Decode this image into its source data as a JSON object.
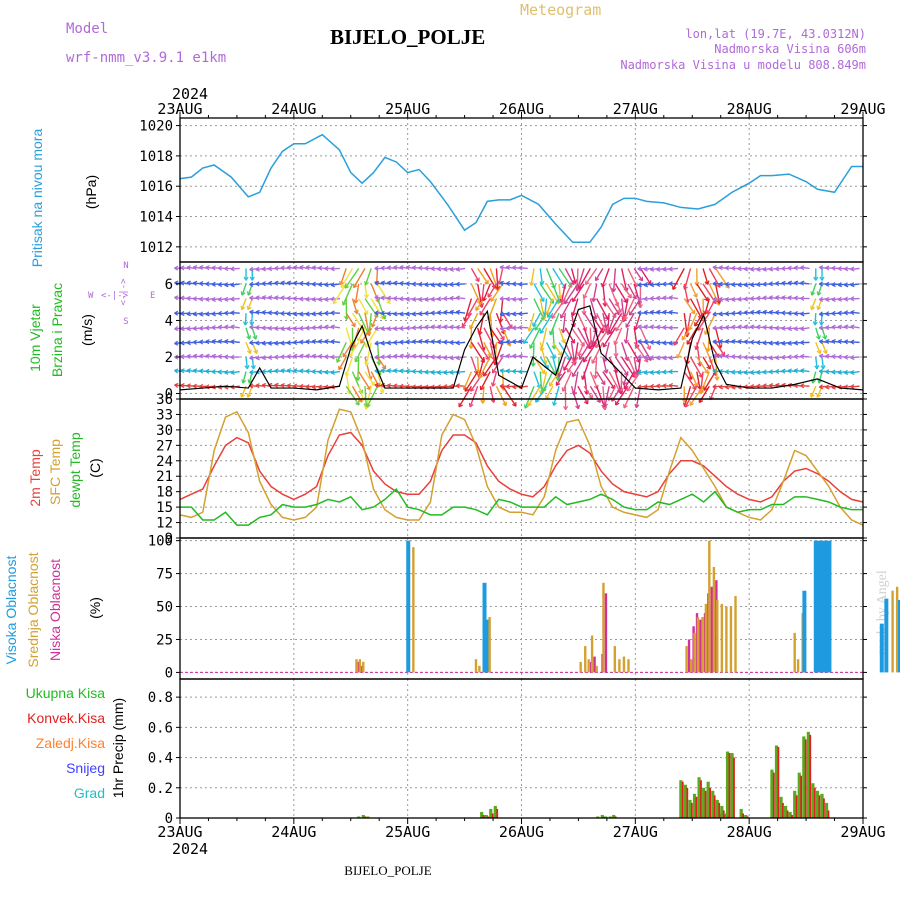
{
  "header": {
    "model_label": "Model",
    "model_name": "wrf-nmm_v3.9.1  e1km",
    "app_title": "Meteogram",
    "station": "BIJELO_POLJE",
    "lonlat": "lon,lat (19.7E, 43.0312N)",
    "altitude": "Nadmorska Visina 606m",
    "model_altitude": "Nadmorska Visina u modelu 808.849m",
    "year_top": "2024",
    "year_bottom": "2024",
    "footer_station": "BIJELO_POLJE",
    "watermark": "made by Angel"
  },
  "x_axis": {
    "ticks": [
      "23AUG",
      "24AUG",
      "25AUG",
      "26AUG",
      "27AUG",
      "28AUG",
      "29AUG"
    ]
  },
  "panels": {
    "pressure": {
      "label": "Pritisak na nivou mora",
      "unit": "(hPa)",
      "ticks": [
        "1012",
        "1014",
        "1016",
        "1018",
        "1020"
      ]
    },
    "wind": {
      "label1": "10m Vjetar",
      "label2": "Brzina i Pravac",
      "unit": "(m/s)",
      "ticks": [
        "0",
        "2",
        "4",
        "6"
      ],
      "compass": {
        "n": "N",
        "w": "W",
        "e": "E",
        "s": "S",
        "arrows": "<-|->"
      }
    },
    "temp": {
      "labels": [
        "2m Temp",
        "SFC Temp",
        "dewpt Temp"
      ],
      "unit": "(C)",
      "ticks": [
        "9",
        "12",
        "15",
        "18",
        "21",
        "24",
        "27",
        "30",
        "33",
        "36"
      ]
    },
    "cloud": {
      "labels": [
        "Visoka Oblacnost",
        "Srednja Oblacnost",
        "Niska Oblacnost"
      ],
      "unit": "(%)",
      "ticks": [
        "0",
        "25",
        "50",
        "75",
        "100"
      ]
    },
    "precip": {
      "unit_label": "1hr Precip (mm)",
      "legend": [
        "Ukupna Kisa",
        "Konvek.Kisa",
        "Zaledj.Kisa",
        "Snijeg",
        "Grad"
      ],
      "ticks": [
        "0",
        "0.2",
        "0.4",
        "0.6",
        "0.8"
      ]
    }
  },
  "colors": {
    "pressure": "#2a9fdc",
    "temp2m": "#e8403a",
    "sfc": "#d4a030",
    "dewpt": "#22bb22",
    "high_cloud": "#1e9be0",
    "mid_cloud": "#d4a030",
    "low_cloud": "#d0309a",
    "total_rain": "#5aaa20",
    "conv_rain": "#e02020",
    "frz_rain": "#ff8030",
    "snow": "#4040ff",
    "hail": "#20c0c0",
    "wind_speed": "#000000"
  },
  "chart_data": [
    {
      "type": "line",
      "title": "Pritisak na nivou mora",
      "ylabel": "(hPa)",
      "ylim": [
        1011,
        1020.5
      ],
      "x_days": [
        0,
        0.1,
        0.2,
        0.3,
        0.45,
        0.6,
        0.7,
        0.8,
        0.9,
        1.0,
        1.1,
        1.25,
        1.4,
        1.5,
        1.6,
        1.7,
        1.8,
        1.9,
        2.0,
        2.1,
        2.2,
        2.35,
        2.5,
        2.6,
        2.7,
        2.8,
        2.9,
        3.0,
        3.15,
        3.3,
        3.45,
        3.6,
        3.7,
        3.8,
        3.9,
        4.0,
        4.1,
        4.25,
        4.4,
        4.55,
        4.7,
        4.85,
        5.0,
        5.1,
        5.2,
        5.35,
        5.5,
        5.6,
        5.75,
        5.9,
        6.0
      ],
      "series": [
        {
          "values": [
            1016.5,
            1016.6,
            1017.2,
            1017.4,
            1016.6,
            1015.3,
            1015.6,
            1017.2,
            1018.3,
            1018.8,
            1018.8,
            1019.4,
            1018.4,
            1016.9,
            1016.2,
            1016.9,
            1017.9,
            1017.6,
            1016.9,
            1017.1,
            1016.3,
            1014.8,
            1013.1,
            1013.6,
            1015.0,
            1015.1,
            1015.1,
            1015.4,
            1014.8,
            1013.5,
            1012.3,
            1012.3,
            1013.3,
            1014.8,
            1015.2,
            1015.2,
            1015.0,
            1014.9,
            1014.6,
            1014.5,
            1014.8,
            1015.6,
            1016.2,
            1016.7,
            1016.7,
            1016.8,
            1016.3,
            1015.8,
            1015.6,
            1017.3,
            1017.3
          ]
        }
      ]
    },
    {
      "type": "line",
      "title": "10m Vjetar Brzina i Pravac",
      "ylabel": "(m/s)",
      "ylim": [
        -0.3,
        7.2
      ],
      "x_days": [
        0,
        0.2,
        0.4,
        0.6,
        0.7,
        0.8,
        1.0,
        1.2,
        1.4,
        1.5,
        1.6,
        1.7,
        1.8,
        2.0,
        2.2,
        2.4,
        2.5,
        2.6,
        2.7,
        2.8,
        3.0,
        3.1,
        3.3,
        3.5,
        3.6,
        3.7,
        3.8,
        4.0,
        4.2,
        4.4,
        4.5,
        4.6,
        4.7,
        4.8,
        5.0,
        5.2,
        5.4,
        5.6,
        5.8,
        6.0
      ],
      "series": [
        {
          "name": "wind speed",
          "values": [
            0.2,
            0.3,
            0.4,
            0.3,
            1.4,
            0.3,
            0.3,
            0.2,
            0.4,
            2.5,
            3.7,
            1.8,
            0.3,
            0.3,
            0.3,
            0.3,
            2.4,
            3.6,
            4.5,
            1.0,
            0.3,
            2.0,
            1.0,
            4.6,
            4.8,
            2.2,
            1.6,
            0.3,
            0.2,
            0.3,
            3.0,
            4.3,
            1.7,
            0.5,
            0.3,
            0.3,
            0.5,
            0.8,
            0.3,
            0.2
          ]
        }
      ]
    },
    {
      "type": "line",
      "title": "2m Temp / SFC Temp / dewpt Temp",
      "ylabel": "(C)",
      "ylim": [
        9,
        36
      ],
      "x_days": [
        0,
        0.1,
        0.2,
        0.3,
        0.4,
        0.5,
        0.6,
        0.7,
        0.8,
        0.9,
        1.0,
        1.1,
        1.2,
        1.3,
        1.4,
        1.5,
        1.6,
        1.7,
        1.8,
        1.9,
        2.0,
        2.1,
        2.2,
        2.3,
        2.4,
        2.5,
        2.6,
        2.7,
        2.8,
        2.9,
        3.0,
        3.1,
        3.2,
        3.3,
        3.4,
        3.5,
        3.6,
        3.7,
        3.8,
        3.9,
        4.0,
        4.1,
        4.2,
        4.3,
        4.4,
        4.5,
        4.6,
        4.7,
        4.8,
        4.9,
        5.0,
        5.1,
        5.2,
        5.3,
        5.4,
        5.5,
        5.6,
        5.7,
        5.8,
        5.9,
        6.0
      ],
      "series": [
        {
          "name": "2m Temp",
          "values": [
            16.5,
            17.5,
            18.5,
            23.0,
            27.0,
            28.5,
            27.5,
            22.0,
            19.0,
            17.5,
            16.5,
            17.5,
            19.0,
            25.0,
            29.0,
            29.5,
            27.0,
            22.0,
            19.5,
            18.0,
            17.5,
            17.5,
            20.0,
            26.0,
            29.0,
            29.0,
            27.5,
            23.0,
            20.0,
            18.5,
            17.5,
            17.0,
            19.0,
            23.0,
            26.0,
            27.0,
            25.5,
            22.0,
            19.5,
            18.0,
            17.5,
            17.0,
            18.0,
            21.5,
            24.0,
            24.0,
            23.0,
            21.0,
            19.0,
            17.5,
            16.5,
            16.0,
            17.0,
            20.0,
            22.0,
            22.5,
            21.5,
            20.0,
            18.0,
            16.5,
            16.0
          ]
        },
        {
          "name": "SFC Temp",
          "values": [
            13.5,
            13.0,
            14.0,
            26.0,
            32.5,
            33.5,
            29.5,
            20.0,
            15.5,
            13.0,
            12.5,
            13.0,
            15.0,
            28.0,
            34.0,
            33.5,
            28.0,
            18.5,
            14.5,
            13.0,
            12.5,
            12.5,
            16.0,
            29.0,
            33.0,
            32.0,
            27.0,
            19.0,
            15.0,
            14.0,
            14.0,
            13.5,
            17.0,
            26.0,
            31.5,
            32.0,
            27.0,
            19.0,
            15.0,
            14.0,
            13.5,
            13.0,
            14.5,
            22.0,
            28.5,
            26.0,
            22.5,
            19.0,
            15.0,
            14.0,
            13.0,
            12.5,
            14.5,
            20.0,
            26.0,
            25.0,
            22.0,
            19.0,
            15.0,
            12.5,
            11.5
          ]
        },
        {
          "name": "dewpt Temp",
          "values": [
            15.0,
            15.0,
            12.5,
            12.5,
            14.0,
            11.5,
            11.5,
            13.0,
            13.5,
            15.5,
            15.0,
            15.0,
            15.5,
            16.5,
            16.0,
            17.0,
            14.5,
            15.0,
            16.5,
            18.5,
            15.0,
            14.5,
            13.5,
            13.5,
            15.0,
            15.0,
            14.5,
            13.5,
            16.5,
            16.0,
            15.0,
            15.0,
            15.0,
            17.0,
            15.5,
            16.0,
            16.5,
            17.5,
            16.5,
            15.0,
            14.5,
            14.5,
            16.0,
            15.5,
            16.5,
            17.5,
            16.0,
            18.0,
            15.0,
            14.0,
            14.5,
            14.5,
            15.5,
            15.5,
            17.0,
            17.0,
            16.5,
            16.0,
            15.0,
            14.5,
            14.5
          ]
        }
      ]
    },
    {
      "type": "bar",
      "title": "Visoka / Srednja / Niska Oblacnost",
      "ylabel": "(%)",
      "ylim": [
        -5,
        102
      ],
      "x_days": [
        1.55,
        1.58,
        1.61,
        2.02,
        2.05,
        2.6,
        2.63,
        2.66,
        2.69,
        2.72,
        2.75,
        2.78,
        2.82,
        3.52,
        3.56,
        3.59,
        3.62,
        3.66,
        3.69,
        3.72,
        3.75,
        3.79,
        3.82,
        3.86,
        3.9,
        3.94,
        4.45,
        4.49,
        4.52,
        4.55,
        4.59,
        4.62,
        4.65,
        4.69,
        4.72,
        4.76,
        4.8,
        4.84,
        4.88,
        5.4,
        5.43,
        5.47,
        5.5,
        5.53,
        5.56,
        5.6,
        5.63,
        5.66,
        5.69,
        5.72,
        5.75,
        5.79,
        5.82,
        5.85,
        6.1,
        6.14,
        6.18,
        6.22,
        6.26,
        6.3,
        6.34,
        6.38,
        6.42,
        6.46,
        6.5,
        6.54,
        6.58,
        6.62,
        6.66
      ],
      "series": [
        {
          "name": "Visoka Oblacnost",
          "values": [
            0,
            0,
            0,
            100,
            0,
            0,
            0,
            0,
            68,
            40,
            0,
            0,
            0,
            0,
            0,
            0,
            0,
            0,
            0,
            0,
            0,
            0,
            0,
            0,
            0,
            0,
            0,
            0,
            0,
            0,
            0,
            0,
            0,
            0,
            0,
            0,
            0,
            0,
            0,
            0,
            0,
            0,
            62,
            0,
            0,
            100,
            100,
            100,
            100,
            100,
            0,
            0,
            0,
            0,
            0,
            0,
            37,
            56,
            0,
            0,
            55,
            60,
            58,
            50,
            48,
            45,
            55,
            50,
            0
          ]
        },
        {
          "name": "Srednja Oblacnost",
          "values": [
            10,
            10,
            8,
            0,
            95,
            10,
            5,
            0,
            0,
            42,
            0,
            0,
            0,
            8,
            20,
            10,
            28,
            5,
            0,
            68,
            0,
            0,
            20,
            10,
            12,
            10,
            20,
            10,
            30,
            42,
            42,
            52,
            100,
            80,
            55,
            52,
            50,
            50,
            58,
            30,
            10,
            45,
            0,
            0,
            0,
            0,
            0,
            0,
            0,
            0,
            0,
            0,
            0,
            0,
            0,
            0,
            0,
            0,
            62,
            65,
            0,
            0,
            0,
            0,
            0,
            0,
            0,
            0,
            58
          ]
        },
        {
          "name": "Niska Oblacnost",
          "values": [
            8,
            5,
            0,
            0,
            0,
            0,
            0,
            20,
            40,
            0,
            0,
            0,
            0,
            0,
            0,
            8,
            12,
            0,
            14,
            60,
            0,
            0,
            0,
            0,
            0,
            0,
            25,
            35,
            45,
            40,
            45,
            60,
            65,
            70,
            0,
            0,
            0,
            0,
            0,
            0,
            0,
            0,
            0,
            0,
            0,
            0,
            0,
            0,
            0,
            0,
            0,
            0,
            0,
            0,
            0,
            0,
            0,
            0,
            0,
            0,
            0,
            0,
            0,
            0,
            0,
            0,
            0,
            0,
            0
          ]
        }
      ]
    },
    {
      "type": "bar",
      "title": "1hr Precip",
      "ylabel": "1hr Precip (mm)",
      "ylim": [
        0,
        0.92
      ],
      "x_days": [
        1.57,
        1.61,
        1.65,
        2.65,
        2.69,
        2.73,
        2.77,
        3.67,
        3.71,
        3.74,
        3.78,
        3.81,
        4.7,
        4.73,
        4.77,
        4.81,
        4.85,
        4.89,
        4.93,
        4.97,
        5.0,
        5.04,
        5.08,
        5.12,
        5.17,
        5.22,
        5.27,
        5.32,
        5.37,
        5.42,
        5.46,
        5.5,
        5.55,
        5.59,
        5.63,
        5.67,
        5.71,
        5.75,
        5.79,
        5.83
      ],
      "series": [
        {
          "name": "Ukupna Kisa",
          "values": [
            0.01,
            0.02,
            0.01,
            0.04,
            0.02,
            0.06,
            0.08,
            0.01,
            0.02,
            0.01,
            0.01,
            0.02,
            0.01,
            0.05,
            0.03,
            0.44,
            0.43,
            0.0,
            0.06,
            0.02,
            0.0,
            0.0,
            0.0,
            0.0,
            0.0,
            0.0,
            0.0,
            0.0,
            0.0,
            0.0,
            0.0,
            0.0,
            0.0,
            0.0,
            0.0,
            0.0,
            0.0,
            0.0,
            0.0,
            0.0
          ]
        },
        {
          "name": "Konvek.Kisa",
          "values": [
            0.0,
            0.01,
            0.0,
            0.02,
            0.01,
            0.03,
            0.06,
            0.0,
            0.01,
            0.0,
            0.0,
            0.01,
            0.0,
            0.03,
            0.02,
            0.43,
            0.4,
            0.0,
            0.03,
            0.01,
            0.0,
            0.0,
            0.0,
            0.0,
            0.0,
            0.0,
            0.0,
            0.0,
            0.0,
            0.0,
            0.0,
            0.0,
            0.0,
            0.0,
            0.0,
            0.0,
            0.0,
            0.0,
            0.0,
            0.0
          ]
        }
      ],
      "late_period": {
        "x_days": [
          4.4,
          4.44,
          4.48,
          4.52,
          4.56,
          4.6,
          4.64,
          4.68,
          4.72,
          4.76,
          4.8,
          5.2,
          5.24,
          5.28,
          5.32,
          5.36,
          5.4,
          5.44,
          5.48,
          5.52,
          5.56,
          5.6,
          5.64,
          5.68
        ],
        "total": [
          0.25,
          0.22,
          0.12,
          0.16,
          0.27,
          0.2,
          0.24,
          0.18,
          0.12,
          0.08,
          0.03,
          0.32,
          0.48,
          0.14,
          0.08,
          0.04,
          0.18,
          0.3,
          0.54,
          0.57,
          0.23,
          0.18,
          0.16,
          0.1
        ],
        "conv": [
          0.24,
          0.2,
          0.1,
          0.14,
          0.25,
          0.18,
          0.2,
          0.15,
          0.1,
          0.05,
          0.01,
          0.3,
          0.47,
          0.1,
          0.05,
          0.02,
          0.15,
          0.28,
          0.52,
          0.55,
          0.2,
          0.15,
          0.13,
          0.05
        ]
      }
    }
  ]
}
